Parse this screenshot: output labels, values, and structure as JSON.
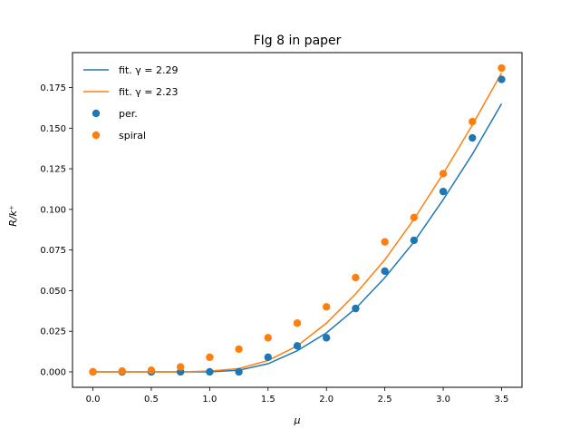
{
  "chart_data": {
    "type": "scatter",
    "title": "FIg 8 in paper",
    "xlabel": "μ",
    "ylabel": "R/k⁺",
    "xlim": [
      -0.175,
      3.675
    ],
    "ylim": [
      -0.0095,
      0.1965
    ],
    "xticks": [
      0.0,
      0.5,
      1.0,
      1.5,
      2.0,
      2.5,
      3.0,
      3.5
    ],
    "xtick_labels": [
      "0.0",
      "0.5",
      "1.0",
      "1.5",
      "2.0",
      "2.5",
      "3.0",
      "3.5"
    ],
    "yticks": [
      0.0,
      0.025,
      0.05,
      0.075,
      0.1,
      0.125,
      0.15,
      0.175
    ],
    "ytick_labels": [
      "0.000",
      "0.025",
      "0.050",
      "0.075",
      "0.100",
      "0.125",
      "0.150",
      "0.175"
    ],
    "grid": false,
    "legend_position": "top-left",
    "series": [
      {
        "name": "fit. γ = 2.29",
        "kind": "line",
        "color": "#1f77b4",
        "x": [
          0.0,
          0.25,
          0.5,
          0.75,
          1.0,
          1.25,
          1.5,
          1.75,
          2.0,
          2.25,
          2.5,
          2.75,
          3.0,
          3.25,
          3.5
        ],
        "y": [
          0.0,
          0.0,
          0.0,
          0.0,
          0.0,
          0.001,
          0.005,
          0.013,
          0.024,
          0.039,
          0.058,
          0.08,
          0.106,
          0.134,
          0.165
        ]
      },
      {
        "name": "fit. γ = 2.23",
        "kind": "line",
        "color": "#ff7f0e",
        "x": [
          0.0,
          0.25,
          0.5,
          0.75,
          1.0,
          1.25,
          1.5,
          1.75,
          2.0,
          2.25,
          2.5,
          2.75,
          3.0,
          3.25,
          3.5
        ],
        "y": [
          0.0,
          0.0,
          0.0,
          0.0,
          0.0005,
          0.002,
          0.007,
          0.016,
          0.03,
          0.048,
          0.069,
          0.094,
          0.122,
          0.152,
          0.184
        ]
      },
      {
        "name": "per.",
        "kind": "scatter",
        "color": "#1f77b4",
        "x": [
          0.0,
          0.25,
          0.5,
          0.75,
          1.0,
          1.25,
          1.5,
          1.75,
          2.0,
          2.25,
          2.5,
          2.75,
          3.0,
          3.25,
          3.5
        ],
        "y": [
          0.0,
          0.0,
          0.0,
          0.0,
          0.0,
          0.0,
          0.009,
          0.016,
          0.021,
          0.039,
          0.062,
          0.081,
          0.111,
          0.144,
          0.18
        ]
      },
      {
        "name": "spiral",
        "kind": "scatter",
        "color": "#ff7f0e",
        "x": [
          0.0,
          0.25,
          0.5,
          0.75,
          1.0,
          1.25,
          1.5,
          1.75,
          2.0,
          2.25,
          2.5,
          2.75,
          3.0,
          3.25,
          3.5
        ],
        "y": [
          0.0,
          0.0005,
          0.001,
          0.003,
          0.009,
          0.014,
          0.021,
          0.03,
          0.04,
          0.058,
          0.08,
          0.095,
          0.122,
          0.154,
          0.187
        ]
      }
    ]
  }
}
